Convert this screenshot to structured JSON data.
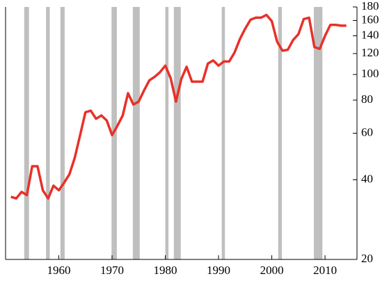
{
  "chart_data": {
    "type": "line",
    "x": [
      1951,
      1952,
      1953,
      1954,
      1955,
      1956,
      1957,
      1958,
      1959,
      1960,
      1961,
      1962,
      1963,
      1964,
      1965,
      1966,
      1967,
      1968,
      1969,
      1970,
      1971,
      1972,
      1973,
      1974,
      1975,
      1976,
      1977,
      1978,
      1979,
      1980,
      1981,
      1982,
      1983,
      1984,
      1985,
      1986,
      1987,
      1988,
      1989,
      1990,
      1991,
      1992,
      1993,
      1994,
      1995,
      1996,
      1997,
      1998,
      1999,
      2000,
      2001,
      2002,
      2003,
      2004,
      2005,
      2006,
      2007,
      2008,
      2009,
      2010,
      2011,
      2012,
      2013,
      2014
    ],
    "series": [
      {
        "color": "#e8302a",
        "values": [
          34.5,
          34,
          36,
          35,
          45,
          45,
          36.5,
          34,
          38,
          36.5,
          39,
          42,
          48.5,
          59,
          72,
          73,
          68,
          70,
          67,
          59,
          64,
          70,
          85,
          77,
          79,
          87,
          95,
          98,
          102,
          108,
          97,
          79,
          96,
          107,
          94,
          94,
          94,
          110,
          113,
          108,
          112,
          112,
          121,
          136,
          149,
          161,
          164,
          164,
          168,
          159,
          133,
          123,
          124,
          135,
          142,
          162,
          164,
          127,
          125,
          140,
          154,
          154,
          153,
          153
        ]
      }
    ],
    "shaded_periods": [
      [
        1953.5,
        1954.4
      ],
      [
        1957.6,
        1958.3
      ],
      [
        1960.3,
        1961.1
      ],
      [
        1969.9,
        1970.9
      ],
      [
        1973.9,
        1975.2
      ],
      [
        1980.0,
        1980.6
      ],
      [
        1981.6,
        1982.9
      ],
      [
        1990.6,
        1991.2
      ],
      [
        2001.2,
        2001.9
      ],
      [
        2007.9,
        2009.5
      ]
    ],
    "shade_color": "#bfbfbf",
    "xlim": [
      1950,
      2016
    ],
    "xticks": [
      1960,
      1970,
      1980,
      1990,
      2000,
      2010
    ],
    "ylim": [
      20,
      180
    ],
    "yticks": [
      20,
      40,
      60,
      80,
      100,
      120,
      140,
      160,
      180
    ],
    "log_y": true,
    "y_axis_side": "right"
  }
}
